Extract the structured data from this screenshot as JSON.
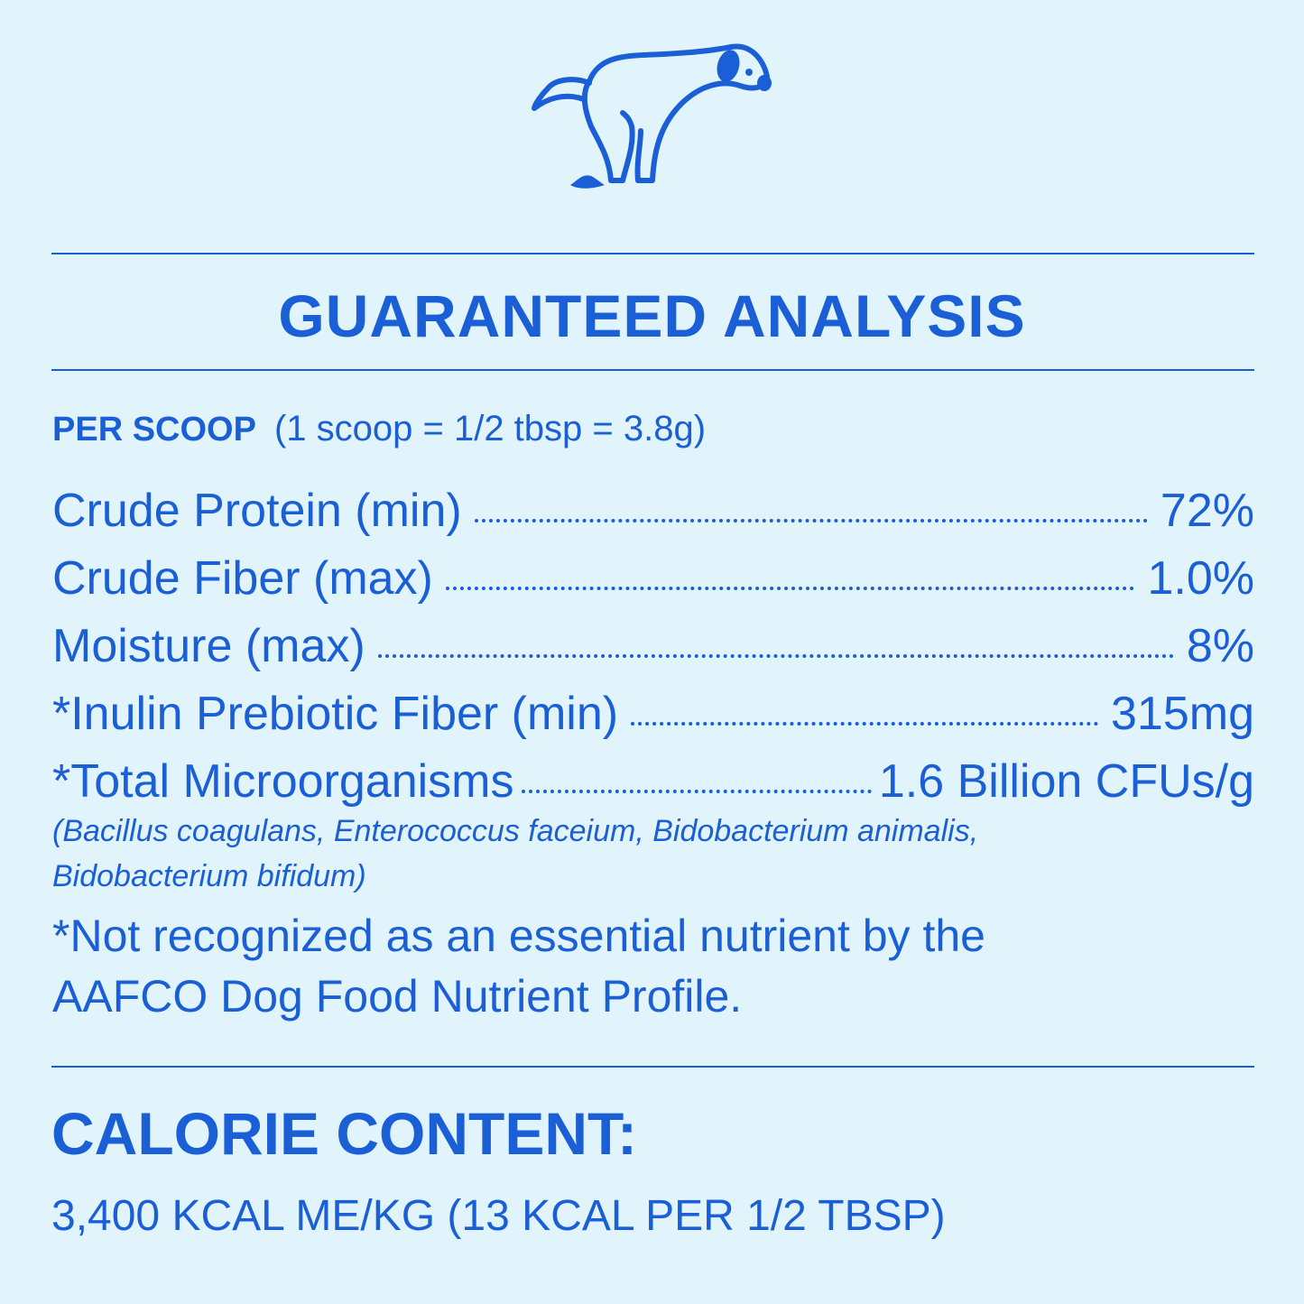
{
  "icon": "dog-pooping-icon",
  "colors": {
    "background": "#e2f4fb",
    "accent": "#1a5fd6"
  },
  "title": "GUARANTEED ANALYSIS",
  "serving": {
    "label": "PER SCOOP",
    "detail": "(1 scoop = 1/2 tbsp = 3.8g)"
  },
  "rows": [
    {
      "name": "Crude Protein (min)",
      "value": "72%"
    },
    {
      "name": "Crude Fiber (max)",
      "value": "1.0%"
    },
    {
      "name": "Moisture (max)",
      "value": "8%"
    },
    {
      "name": "*Inulin Prebiotic Fiber (min)",
      "value": "315mg"
    },
    {
      "name": "*Total Microorganisms",
      "value": "1.6 Billion CFUs/g"
    }
  ],
  "species_lines": [
    "(Bacillus coagulans, Enterococcus faceium, Bidobacterium animalis,",
    "Bidobacterium bifidum)"
  ],
  "note_lines": [
    "*Not recognized as an essential nutrient by the",
    "AAFCO Dog Food Nutrient Profile."
  ],
  "calorie": {
    "heading": "CALORIE CONTENT:",
    "value": "3,400 KCAL ME/KG (13 KCAL PER 1/2 TBSP)"
  }
}
